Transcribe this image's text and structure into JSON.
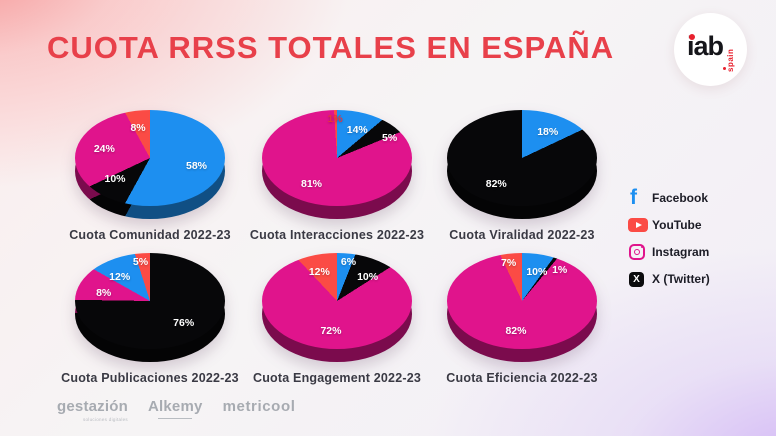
{
  "header": {
    "title": "CUOTA RRSS TOTALES EN ESPAÑA",
    "logo": {
      "text": "iab",
      "region": "spain"
    }
  },
  "legend": {
    "items": [
      {
        "label": "Facebook",
        "icon": "facebook-icon"
      },
      {
        "label": "YouTube",
        "icon": "youtube-icon"
      },
      {
        "label": "Instagram",
        "icon": "instagram-icon"
      },
      {
        "label": "X (Twitter)",
        "icon": "x-twitter-icon"
      }
    ]
  },
  "footer": {
    "partners": [
      {
        "name": "gestazión",
        "tagline": "soluciones digitales"
      },
      {
        "name": "Alkemy",
        "tagline": ""
      },
      {
        "name": "metricool",
        "tagline": ""
      }
    ]
  },
  "colors": {
    "title": "#e8404a",
    "iab_red": "#e8212e",
    "caption": "#3a3a44",
    "legend_text": "#1c1c26",
    "footer_gray": "#a7abb1",
    "facebook": "#1d8ff0",
    "youtube": "#fb4b45",
    "instagram": "#e0148c",
    "x_twitter": "#0b0b0d",
    "background_pink": "#f7b9b9",
    "background_lavender": "#e1d3f7"
  },
  "chart_data": [
    {
      "type": "pie",
      "title": "Cuota Comunidad 2022-23",
      "slices": [
        {
          "label": "Facebook",
          "value": 58,
          "color": "#1d8ff0"
        },
        {
          "label": "X (Twitter)",
          "value": 10,
          "color": "#070709"
        },
        {
          "label": "Instagram",
          "value": 24,
          "color": "#e0148c"
        },
        {
          "label": "YouTube",
          "value": 8,
          "color": "#fb4b45"
        }
      ]
    },
    {
      "type": "pie",
      "title": "Cuota Interacciones 2022-23",
      "slices": [
        {
          "label": "Facebook",
          "value": 14,
          "color": "#1d8ff0"
        },
        {
          "label": "X (Twitter)",
          "value": 5,
          "color": "#070709"
        },
        {
          "label": "Instagram",
          "value": 81,
          "color": "#e0148c"
        },
        {
          "label": "YouTube",
          "value": 1,
          "color": "#fb4b45",
          "label_color": "#e8333f"
        }
      ]
    },
    {
      "type": "pie",
      "title": "Cuota Viralidad 2022-23",
      "slices": [
        {
          "label": "Facebook",
          "value": 18,
          "color": "#1d8ff0"
        },
        {
          "label": "X (Twitter)",
          "value": 82,
          "color": "#070709"
        }
      ]
    },
    {
      "type": "pie",
      "title": "Cuota Publicaciones 2022-23",
      "slices": [
        {
          "label": "X (Twitter)",
          "value": 76,
          "color": "#070709"
        },
        {
          "label": "Instagram",
          "value": 8,
          "color": "#e0148c"
        },
        {
          "label": "Facebook",
          "value": 12,
          "color": "#1d8ff0"
        },
        {
          "label": "YouTube",
          "value": 5,
          "color": "#fb4b45"
        }
      ]
    },
    {
      "type": "pie",
      "title": "Cuota Engagement 2022-23",
      "slices": [
        {
          "label": "Facebook",
          "value": 6,
          "color": "#1d8ff0"
        },
        {
          "label": "X (Twitter)",
          "value": 10,
          "color": "#070709"
        },
        {
          "label": "Instagram",
          "value": 72,
          "color": "#e0148c"
        },
        {
          "label": "YouTube",
          "value": 12,
          "color": "#fb4b45"
        }
      ]
    },
    {
      "type": "pie",
      "title": "Cuota Eficiencia 2022-23",
      "slices": [
        {
          "label": "Facebook",
          "value": 10,
          "color": "#1d8ff0"
        },
        {
          "label": "X (Twitter)",
          "value": 1,
          "color": "#070709"
        },
        {
          "label": "Instagram",
          "value": 82,
          "color": "#e0148c"
        },
        {
          "label": "YouTube",
          "value": 7,
          "color": "#fb4b45"
        }
      ]
    }
  ]
}
